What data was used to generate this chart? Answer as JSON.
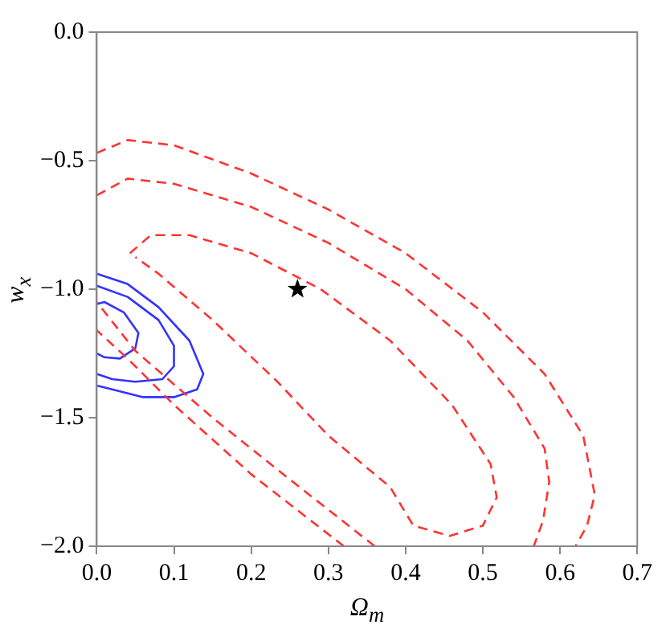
{
  "chart_data": {
    "type": "line",
    "xlabel": "Ω$_{m}$",
    "ylabel": "w$_{x}$",
    "grid": false,
    "legend": false,
    "xlim": [
      0,
      0.7
    ],
    "ylim": [
      -2,
      0
    ],
    "xticks": [
      {
        "value": 0,
        "label": "0.0"
      },
      0.1,
      0.2,
      0.3,
      0.4,
      0.5,
      0.6,
      0.7
    ],
    "yticks": [
      {
        "value": -2,
        "label": "−2.0"
      },
      {
        "value": -1.5,
        "label": "−1.5"
      },
      {
        "value": -1,
        "label": "−1.0"
      },
      {
        "value": -0.5,
        "label": "−0.5"
      },
      {
        "value": 0,
        "label": "0.0"
      }
    ],
    "series": [
      {
        "color": "#ff3333",
        "line_style": "dashed",
        "marker": "none",
        "x": [
          0,
          0.04,
          0.1,
          0.2,
          0.3,
          0.4,
          0.5,
          0.58,
          0.63,
          0.645,
          0.635,
          0.62,
          null,
          0.32,
          0.2,
          0.1,
          0.04,
          0
        ],
        "values": [
          -0.47,
          -0.42,
          -0.44,
          -0.55,
          -0.69,
          -0.86,
          -1.09,
          -1.33,
          -1.57,
          -1.8,
          -1.92,
          -2,
          null,
          -2,
          -1.72,
          -1.45,
          -1.27,
          -1.16
        ]
      },
      {
        "color": "#ff3333",
        "line_style": "dashed",
        "marker": "none",
        "x": [
          0,
          0.04,
          0.1,
          0.2,
          0.3,
          0.4,
          0.48,
          0.54,
          0.58,
          0.586,
          0.578,
          0.566,
          null,
          0.36,
          0.25,
          0.15,
          0.05,
          0
        ],
        "values": [
          -0.635,
          -0.57,
          -0.59,
          -0.68,
          -0.82,
          -1,
          -1.2,
          -1.42,
          -1.62,
          -1.75,
          -1.9,
          -2,
          null,
          -2,
          -1.74,
          -1.5,
          -1.24,
          -1.05
        ]
      },
      {
        "color": "#ff3333",
        "line_style": "dashed",
        "marker": "none",
        "x": [
          0.043,
          0.07,
          0.12,
          0.2,
          0.29,
          0.38,
          0.46,
          0.51,
          0.518,
          0.5,
          0.457,
          0.41,
          0.38,
          0.3,
          0.234,
          0.15,
          0.08,
          0.05
        ],
        "values": [
          -0.86,
          -0.79,
          -0.79,
          -0.86,
          -1,
          -1.2,
          -1.45,
          -1.68,
          -1.81,
          -1.92,
          -1.96,
          -1.92,
          -1.77,
          -1.57,
          -1.36,
          -1.12,
          -0.94,
          -0.875
        ]
      },
      {
        "color": "#3333ff",
        "line_style": "solid",
        "marker": "none",
        "x": [
          0,
          0.04,
          0.08,
          0.12,
          0.138,
          0.13,
          0.1,
          0.06,
          0.02,
          0
        ],
        "values": [
          -0.94,
          -0.98,
          -1.07,
          -1.2,
          -1.33,
          -1.39,
          -1.42,
          -1.42,
          -1.39,
          -1.375
        ]
      },
      {
        "color": "#3333ff",
        "line_style": "solid",
        "marker": "none",
        "x": [
          0,
          0.04,
          0.08,
          0.1,
          0.1,
          0.085,
          0.05,
          0.02,
          0
        ],
        "values": [
          -0.987,
          -1.03,
          -1.12,
          -1.22,
          -1.3,
          -1.35,
          -1.36,
          -1.35,
          -1.33
        ]
      },
      {
        "color": "#3333ff",
        "line_style": "solid",
        "marker": "none",
        "x": [
          0,
          0.01,
          0.035,
          0.054,
          0.05,
          0.03,
          0.01,
          0
        ],
        "values": [
          -1.058,
          -1.05,
          -1.09,
          -1.17,
          -1.23,
          -1.27,
          -1.265,
          -1.25
        ]
      },
      {
        "type": "scatter",
        "color": "#000000",
        "marker": "star",
        "x": [
          0.26
        ],
        "values": [
          -1
        ]
      }
    ]
  }
}
